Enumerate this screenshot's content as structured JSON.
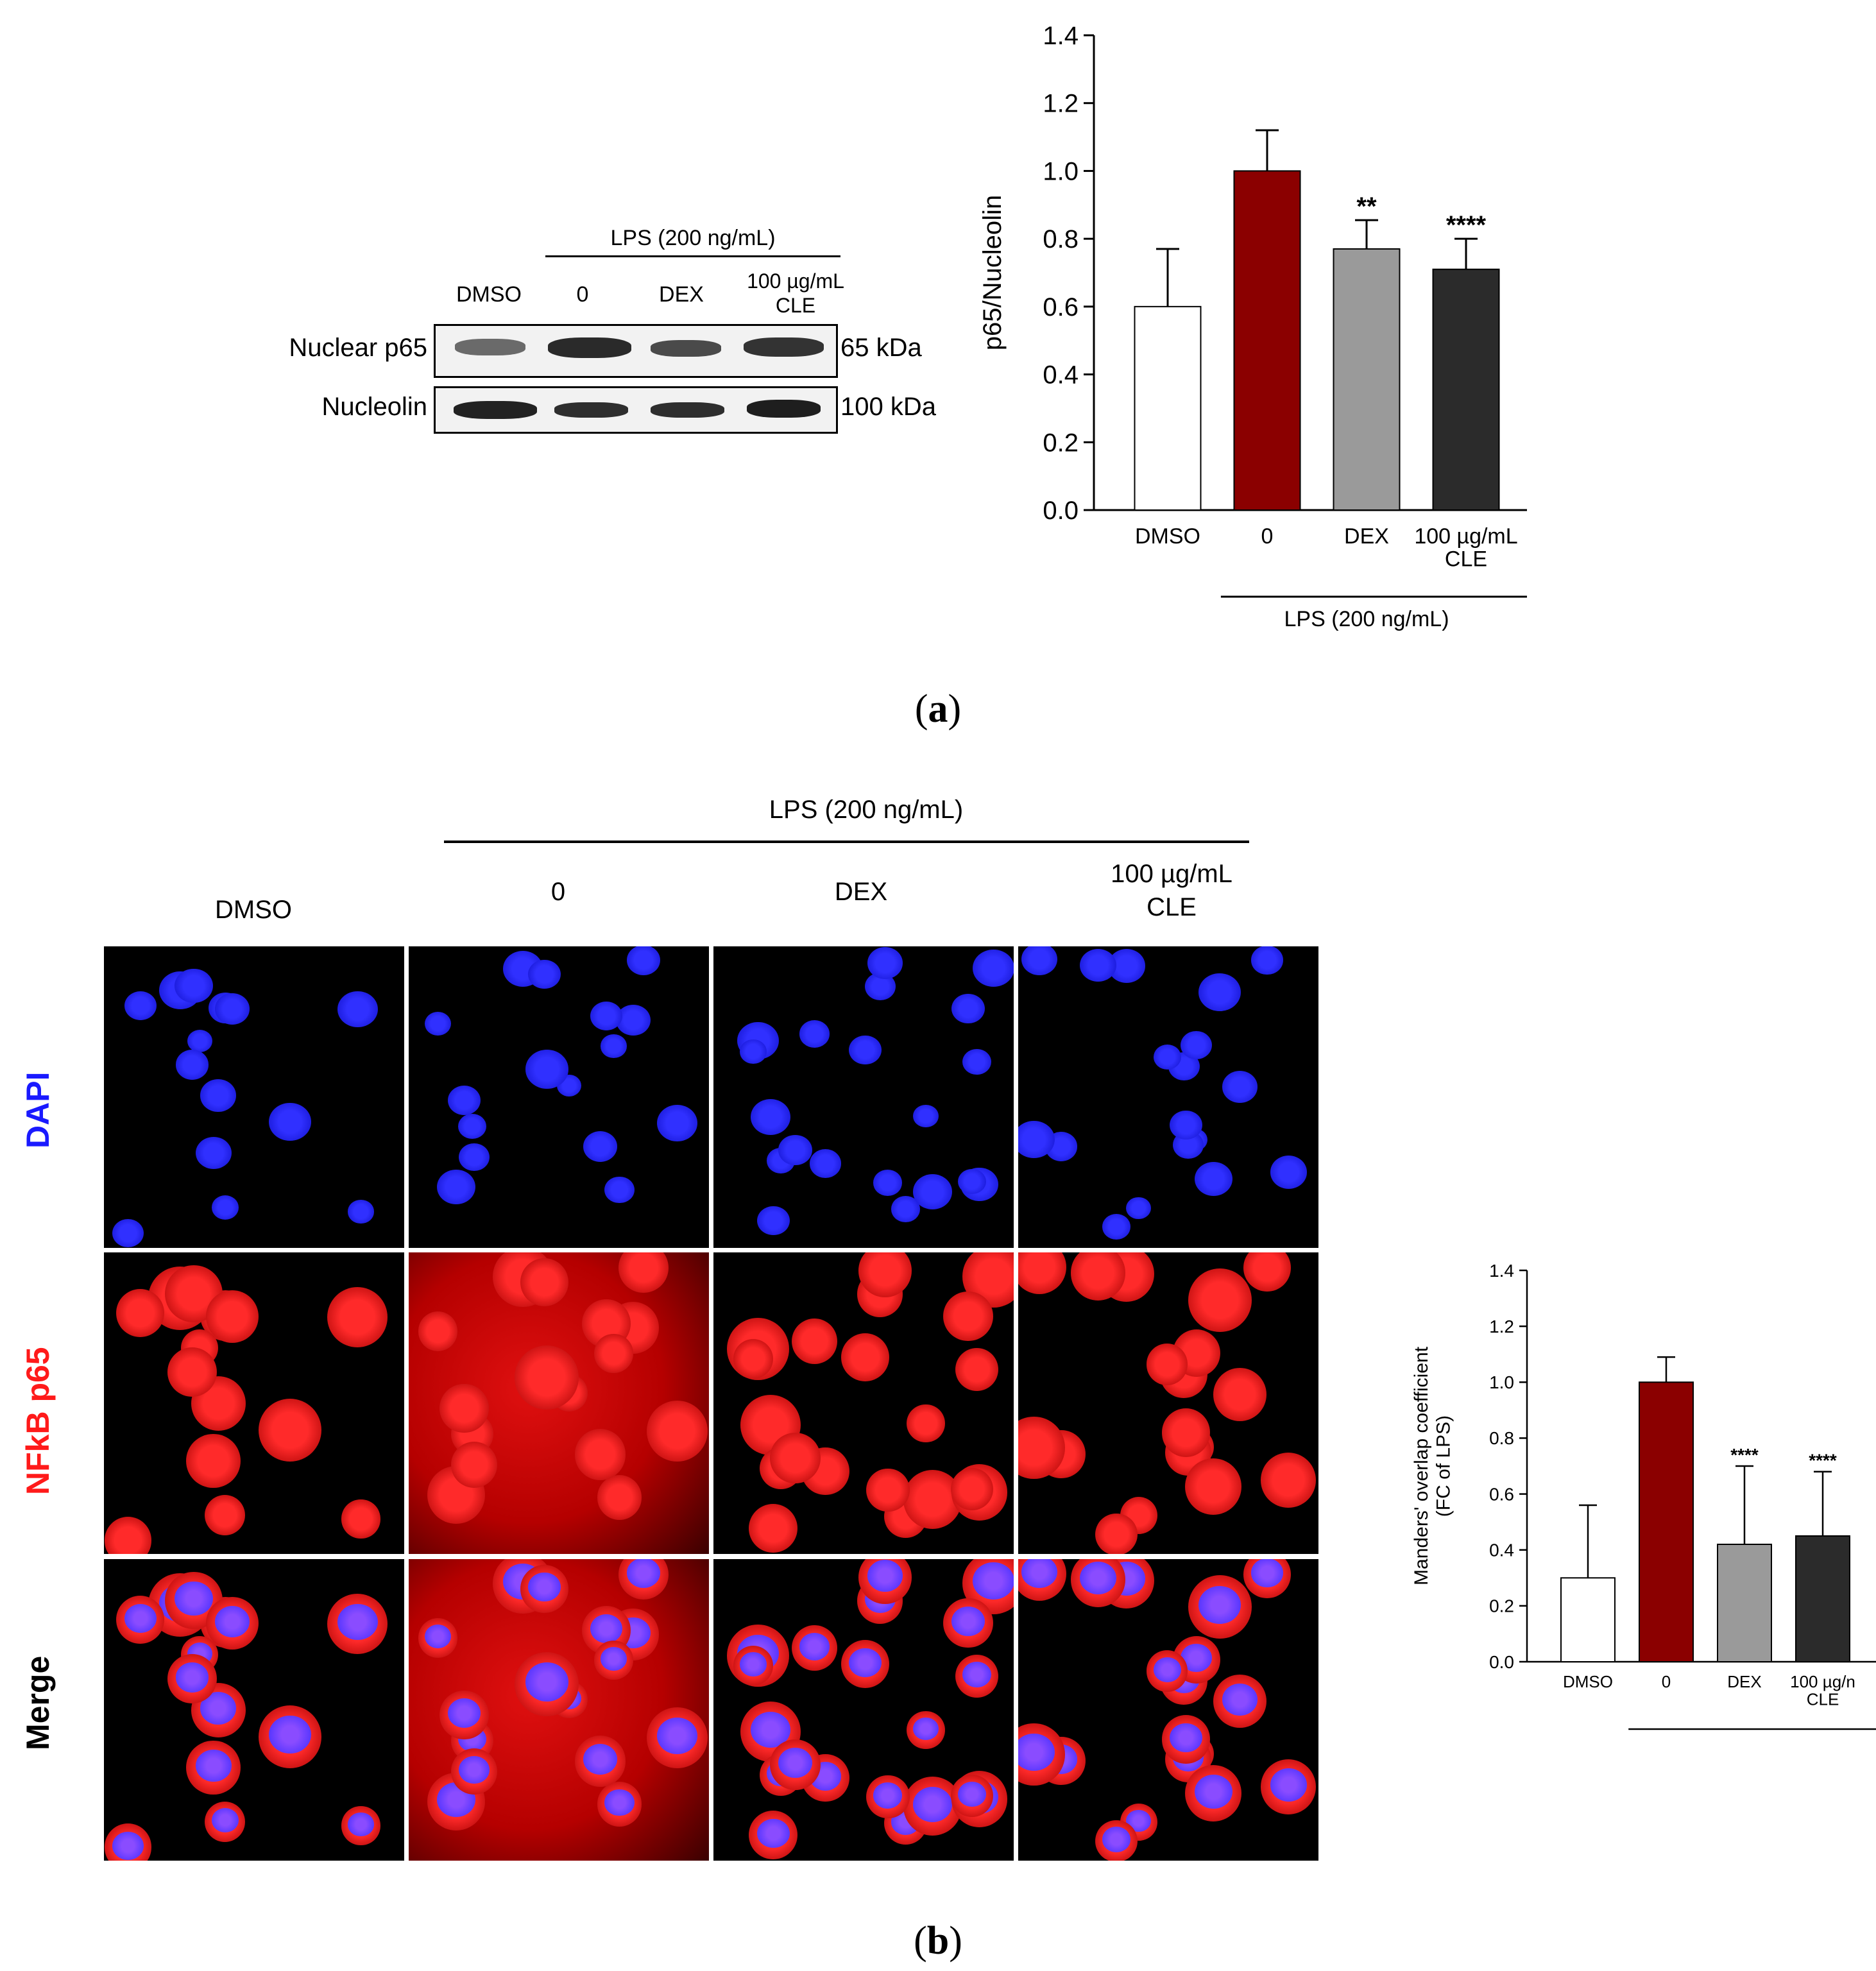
{
  "panel_a": {
    "caption": {
      "open": "(",
      "letter": "a",
      "close": ")"
    },
    "blot": {
      "group_label": "LPS (200 ng/mL)",
      "lanes": [
        "DMSO",
        "0",
        "DEX",
        "100 µg/mL",
        "CLE"
      ],
      "rows": [
        {
          "name": "Nuclear p65",
          "size": "65 kDa"
        },
        {
          "name": "Nucleolin",
          "size": "100 kDa"
        }
      ]
    }
  },
  "panel_b": {
    "caption": {
      "open": "(",
      "letter": "b",
      "close": ")"
    },
    "group_label": "LPS (200 ng/mL)",
    "columns": [
      "DMSO",
      "0",
      "DEX",
      "100 µg/mL",
      "CLE"
    ],
    "rows": [
      {
        "label": "DAPI",
        "color": "#1a1aff"
      },
      {
        "label": "NFkB p65",
        "color": "#ff1a1a"
      },
      {
        "label": "Merge",
        "color": "#000000"
      }
    ]
  },
  "chart_data": [
    {
      "type": "bar",
      "categories": [
        "DMSO",
        "0",
        "DEX",
        "100 µg/mL\nCLE"
      ],
      "values": [
        0.6,
        1.0,
        0.77,
        0.71
      ],
      "errors": [
        0.17,
        0.12,
        0.085,
        0.09
      ],
      "significance": [
        "",
        "",
        "**",
        "****"
      ],
      "colors": [
        "#ffffff",
        "#8b0000",
        "#9a9a9a",
        "#2b2b2b"
      ],
      "ylabel": "p65/Nucleolin",
      "ylim": [
        0.0,
        1.4
      ],
      "yticks": [
        "0.0",
        "0.2",
        "0.4",
        "0.6",
        "0.8",
        "1.0",
        "1.2",
        "1.4"
      ],
      "group_label": "LPS (200 ng/mL)"
    },
    {
      "type": "bar",
      "categories": [
        "DMSO",
        "0",
        "DEX",
        "100 µg/n\nCLE"
      ],
      "values": [
        0.3,
        1.0,
        0.42,
        0.45
      ],
      "errors": [
        0.26,
        0.09,
        0.28,
        0.23
      ],
      "significance": [
        "",
        "",
        "****",
        "****"
      ],
      "colors": [
        "#ffffff",
        "#8b0000",
        "#9a9a9a",
        "#2b2b2b"
      ],
      "ylabel": "Manders' overlap coefficient\n(FC of LPS)",
      "ylim": [
        0.0,
        1.4
      ],
      "yticks": [
        "0.0",
        "0.2",
        "0.4",
        "0.6",
        "0.8",
        "1.0",
        "1.2",
        "1.4"
      ],
      "group_label": "LPS (200 ng/mL)"
    }
  ]
}
